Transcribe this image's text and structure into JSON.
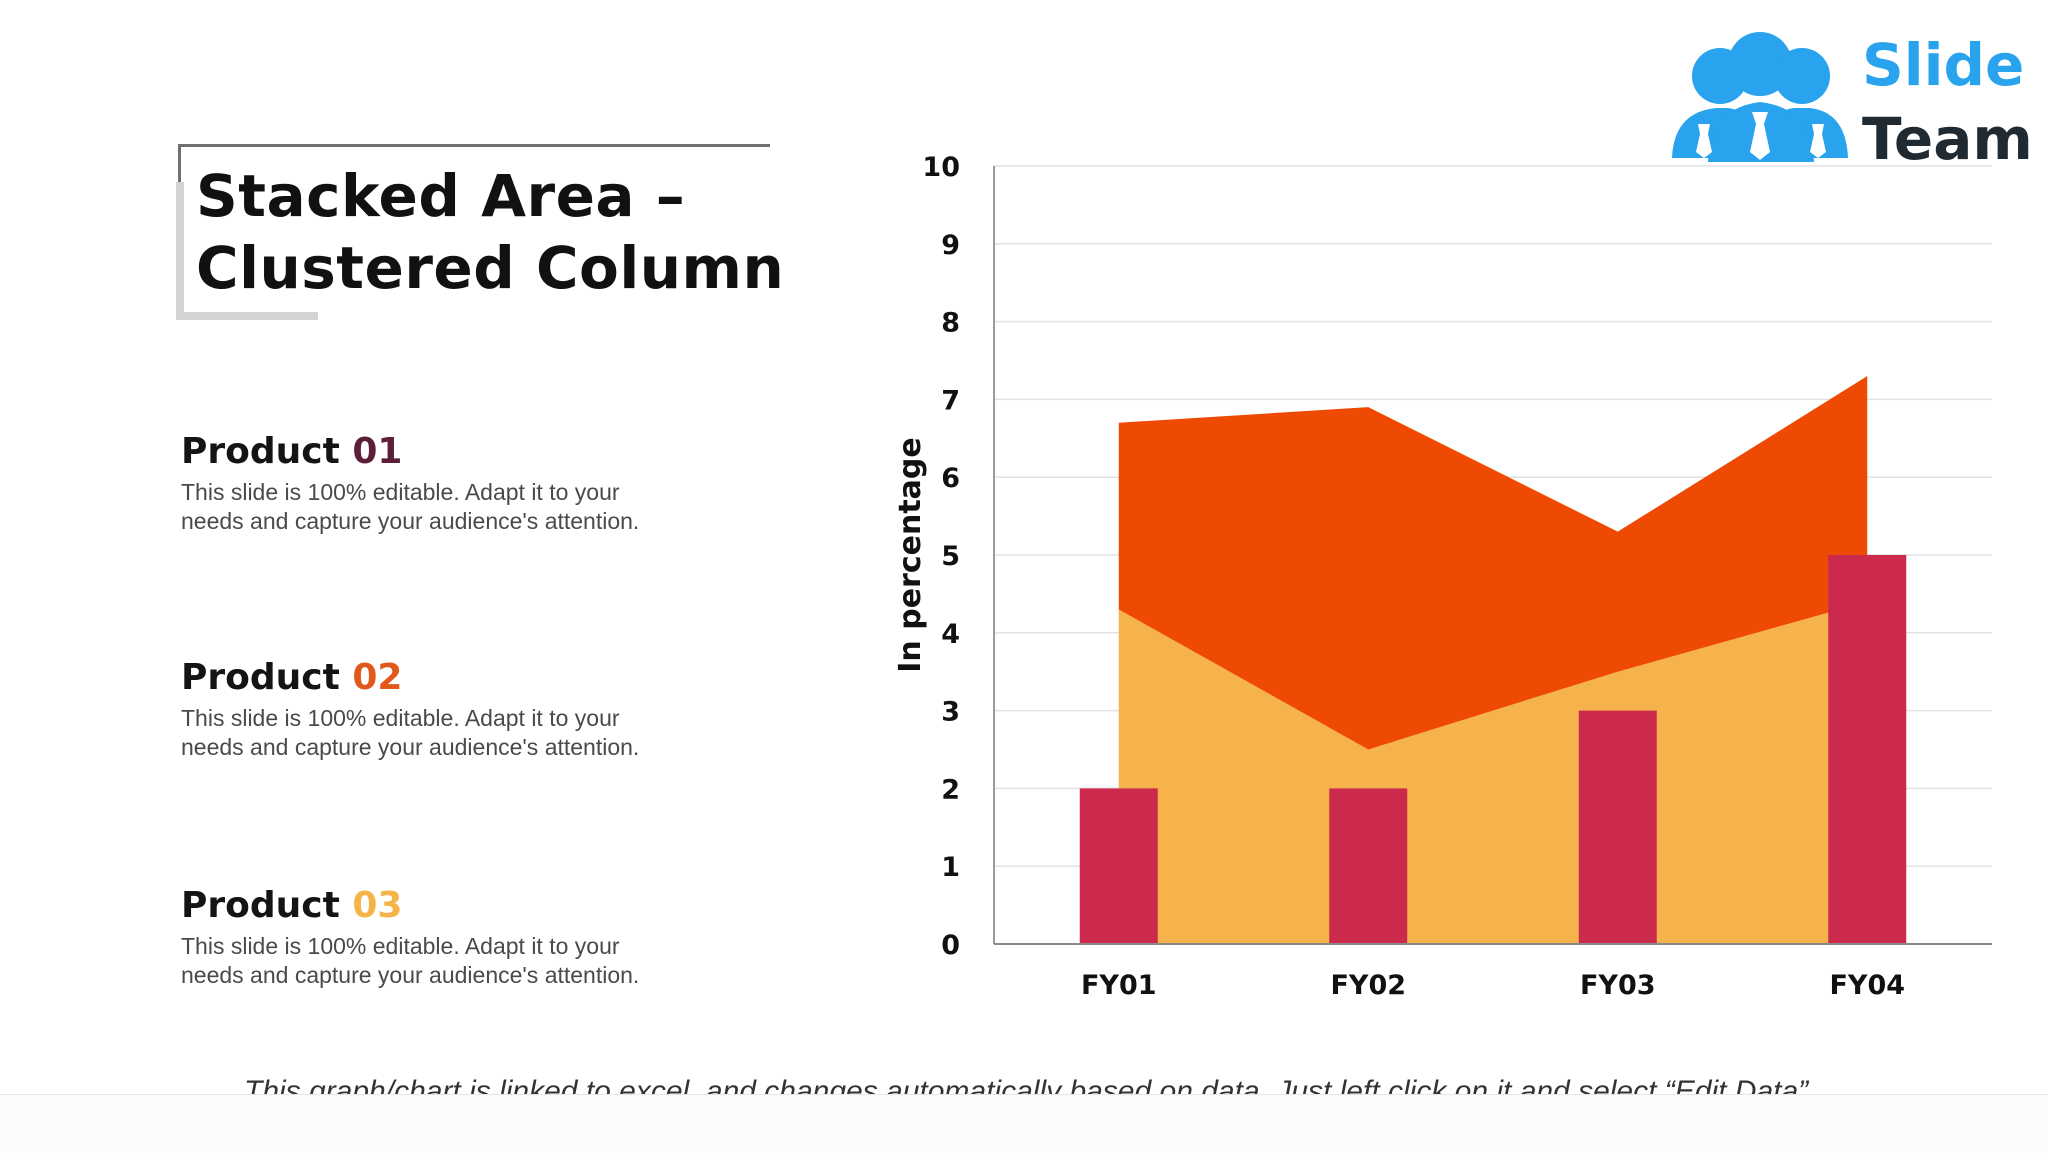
{
  "slide": {
    "title_line1": "Stacked Area –",
    "title_line2": "Clustered Column",
    "footnote": "This graph/chart is linked to excel, and changes automatically based on data. Just left click on it and select “Edit Data”."
  },
  "logo": {
    "line1": "Slide",
    "line2": "Team",
    "colors": {
      "icon": "#2aa3ee",
      "word1": "#2aa3ee",
      "word2": "#1f2a33"
    }
  },
  "products": [
    {
      "word": "Product",
      "number": "01",
      "number_color": "#5c1f3a",
      "description": "This slide is 100% editable. Adapt it to your needs and capture your audience's attention."
    },
    {
      "word": "Product",
      "number": "02",
      "number_color": "#e2581a",
      "description": "This slide is 100% editable. Adapt it to your needs and capture your audience's attention."
    },
    {
      "word": "Product",
      "number": "03",
      "number_color": "#f5b447",
      "description": "This slide is 100% editable. Adapt it to your needs and capture your audience's attention."
    }
  ],
  "chart_data": {
    "type": "area",
    "title": "",
    "xlabel": "",
    "ylabel": "In percentage",
    "categories": [
      "FY01",
      "FY02",
      "FY03",
      "FY04"
    ],
    "ylim": [
      0,
      10
    ],
    "yticks": [
      0,
      1,
      2,
      3,
      4,
      5,
      6,
      7,
      8,
      9,
      10
    ],
    "grid": true,
    "legend": "none",
    "area_series": [
      {
        "values": [
          4.3,
          2.5,
          3.5,
          4.4
        ],
        "color": "#f6b24b"
      },
      {
        "values": [
          2.4,
          4.4,
          1.8,
          2.9
        ],
        "color": "#ee4a04"
      }
    ],
    "column_series": [
      {
        "values": [
          2,
          2,
          3,
          5
        ],
        "color": "#cc2a4c"
      }
    ]
  }
}
